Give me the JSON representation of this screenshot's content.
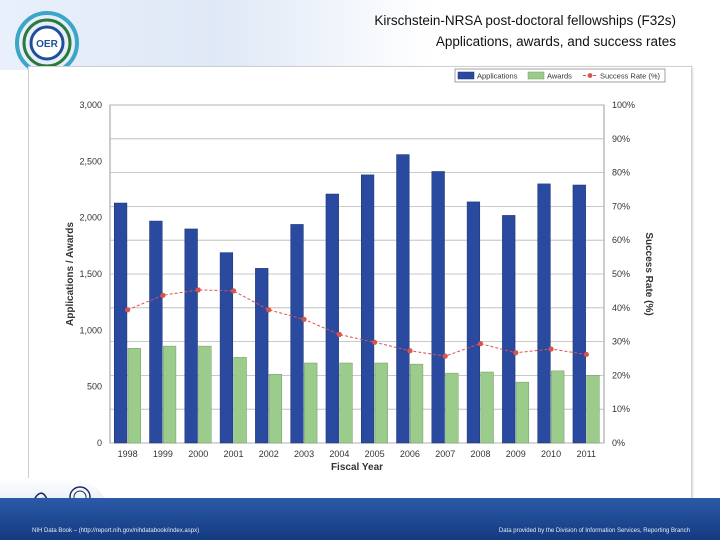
{
  "title": {
    "line1": "Kirschstein-NRSA post-doctoral fellowships (F32s)",
    "line2": "Applications, awards, and success rates"
  },
  "logo_text": "OER",
  "footer": {
    "left": "NIH Data Book – (http://report.nih.gov/nihdatabook/index.aspx)",
    "right": "Data provided by the Division of Information Services, Reporting Branch"
  },
  "colors": {
    "applications": "#2a4aa0",
    "awards": "#9ccc8c",
    "success_rate": "#d9534f"
  },
  "chart_data": {
    "type": "bar",
    "categories": [
      "1998",
      "1999",
      "2000",
      "2001",
      "2002",
      "2003",
      "2004",
      "2005",
      "2006",
      "2007",
      "2008",
      "2009",
      "2010",
      "2011"
    ],
    "series": [
      {
        "name": "Applications",
        "axis": "left",
        "values": [
          2130,
          1970,
          1900,
          1690,
          1550,
          1940,
          2210,
          2380,
          2560,
          2410,
          2140,
          2020,
          2300,
          2290
        ]
      },
      {
        "name": "Awards",
        "axis": "left",
        "values": [
          840,
          860,
          860,
          760,
          610,
          710,
          710,
          710,
          700,
          620,
          630,
          540,
          640,
          600
        ]
      },
      {
        "name": "Success Rate (%)",
        "axis": "right",
        "type": "line",
        "values": [
          39.4,
          43.7,
          45.3,
          45.0,
          39.4,
          36.6,
          32.1,
          29.8,
          27.3,
          25.7,
          29.4,
          26.7,
          27.8,
          26.2
        ]
      }
    ],
    "xlabel": "Fiscal Year",
    "ylabel": "Applications / Awards",
    "y2label": "Success Rate (%)",
    "ylim": [
      0,
      3000
    ],
    "y2lim": [
      0,
      100
    ],
    "yticks": [
      "0",
      "500",
      "1,000",
      "1,500",
      "2,000",
      "2,500",
      "3,000"
    ],
    "y2ticks": [
      "0%",
      "10%",
      "20%",
      "30%",
      "40%",
      "50%",
      "60%",
      "70%",
      "80%",
      "90%",
      "100%"
    ],
    "legend": [
      "Applications",
      "Awards",
      "Success Rate (%)"
    ],
    "legend_position": "top-right",
    "grid": true
  }
}
